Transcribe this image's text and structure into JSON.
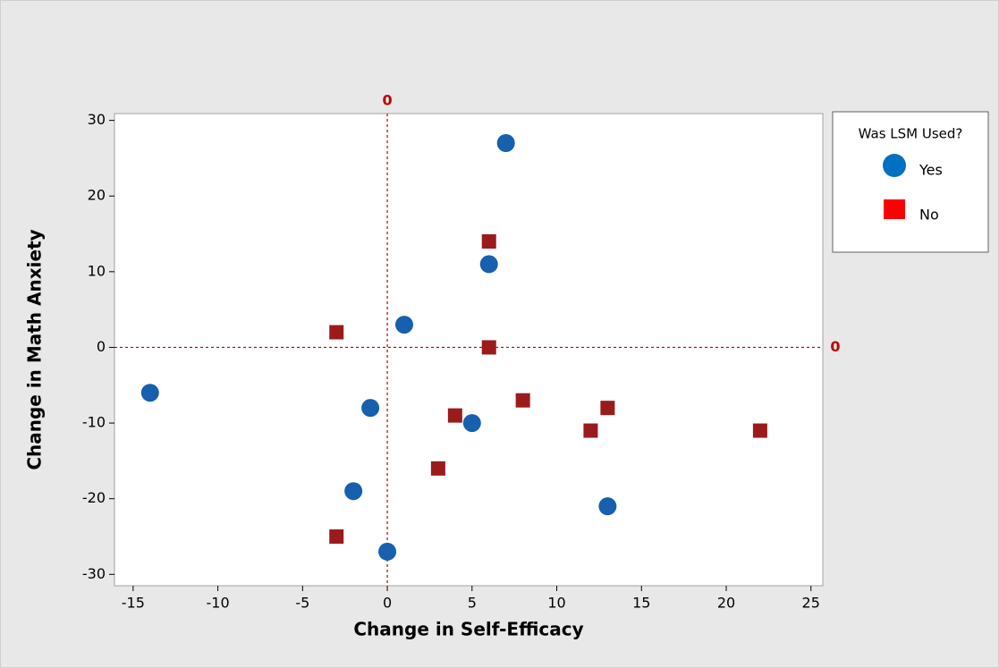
{
  "chart_data": {
    "type": "scatter",
    "x_label": "Change in Self-Efficacy",
    "y_label": "Change in Math Anxiety",
    "legend_title": "Was LSM Used?",
    "legend_position": "right",
    "xlim": [
      -16.1,
      25.7
    ],
    "xticks": [
      -15,
      -10,
      -5,
      0,
      5,
      10,
      15,
      20,
      25
    ],
    "ylim": [
      -31.5,
      30.9
    ],
    "yticks": [
      -30,
      -20,
      -10,
      0,
      10,
      20,
      30
    ],
    "reference_lines": {
      "x": 0,
      "y": 0,
      "color": "#c00000"
    },
    "series": [
      {
        "name": "Yes",
        "marker": "circle",
        "color": "#1660ad",
        "legend_color": "#0070c0",
        "x": [
          -14,
          7,
          6,
          1,
          -1,
          5,
          -2,
          0,
          13
        ],
        "y": [
          -6,
          27,
          11,
          3,
          -8,
          -10,
          -19,
          -27,
          -21
        ]
      },
      {
        "name": "No",
        "marker": "square",
        "color": "#9b1b1b",
        "legend_color": "#ff0000",
        "x": [
          -3,
          6,
          6,
          4,
          8,
          13,
          12,
          22,
          3,
          -3
        ],
        "y": [
          2,
          14,
          0,
          -9,
          -7,
          -8,
          -11,
          -11,
          -16,
          -25
        ]
      }
    ]
  }
}
